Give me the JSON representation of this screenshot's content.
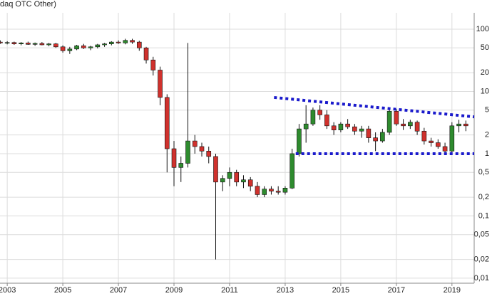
{
  "chart_data": {
    "type": "candlestick",
    "title": "daq OTC Other)",
    "log_scale": true,
    "grid": true,
    "up_color": "#2e8b2e",
    "down_color": "#d0312d",
    "x": [
      2002.75,
      2003.0,
      2003.25,
      2003.5,
      2003.75,
      2004.0,
      2004.25,
      2004.5,
      2004.75,
      2005.0,
      2005.25,
      2005.5,
      2005.75,
      2006.0,
      2006.25,
      2006.5,
      2006.75,
      2007.0,
      2007.25,
      2007.5,
      2007.75,
      2008.0,
      2008.25,
      2008.5,
      2008.75,
      2009.0,
      2009.25,
      2009.5,
      2009.75,
      2010.0,
      2010.25,
      2010.5,
      2010.75,
      2011.0,
      2011.25,
      2011.5,
      2011.75,
      2012.0,
      2012.25,
      2012.5,
      2012.75,
      2013.0,
      2013.25,
      2013.5,
      2013.75,
      2014.0,
      2014.25,
      2014.5,
      2014.75,
      2015.0,
      2015.25,
      2015.5,
      2015.75,
      2016.0,
      2016.25,
      2016.5,
      2016.75,
      2017.0,
      2017.25,
      2017.5,
      2017.75,
      2018.0,
      2018.25,
      2018.5,
      2018.75,
      2019.0,
      2019.25,
      2019.5
    ],
    "open": [
      62,
      60,
      61,
      58,
      60,
      57,
      59,
      56,
      58,
      52,
      45,
      48,
      54,
      50,
      52,
      56,
      58,
      62,
      60,
      66,
      62,
      50,
      32,
      22,
      8,
      1.2,
      0.6,
      0.7,
      1.6,
      1.3,
      1.1,
      0.9,
      0.35,
      0.4,
      0.5,
      0.35,
      0.38,
      0.3,
      0.22,
      0.27,
      0.25,
      0.24,
      0.28,
      1.0,
      2.5,
      3.0,
      5.0,
      4.2,
      2.8,
      2.4,
      3.0,
      2.7,
      2.3,
      2.5,
      1.8,
      1.6,
      2.2,
      4.8,
      3.0,
      2.8,
      3.2,
      2.3,
      1.6,
      1.5,
      1.3,
      1.1,
      2.8,
      3.0
    ],
    "high": [
      66,
      64,
      63,
      62,
      63,
      61,
      62,
      60,
      60,
      55,
      52,
      56,
      58,
      54,
      58,
      60,
      64,
      66,
      70,
      70,
      65,
      52,
      36,
      25,
      9,
      1.6,
      0.9,
      60,
      2.0,
      1.5,
      1.3,
      1.0,
      0.45,
      0.6,
      0.55,
      0.45,
      0.42,
      0.35,
      0.3,
      0.3,
      0.3,
      0.3,
      1.2,
      3.0,
      6.0,
      5.5,
      6.0,
      5.0,
      3.2,
      3.2,
      3.6,
      3.0,
      2.8,
      2.8,
      2.2,
      2.5,
      5.5,
      5.2,
      3.6,
      3.5,
      3.4,
      2.6,
      1.8,
      1.7,
      1.5,
      3.2,
      3.5,
      3.4
    ],
    "low": [
      58,
      57,
      56,
      55,
      56,
      54,
      55,
      53,
      50,
      42,
      40,
      46,
      48,
      46,
      49,
      52,
      55,
      58,
      57,
      58,
      45,
      28,
      18,
      6,
      0.5,
      0.3,
      0.35,
      0.6,
      1.0,
      0.9,
      0.7,
      0.02,
      0.25,
      0.3,
      0.3,
      0.28,
      0.25,
      0.2,
      0.2,
      0.22,
      0.22,
      0.22,
      0.27,
      0.9,
      1.5,
      2.8,
      3.5,
      2.5,
      2.0,
      2.2,
      2.5,
      2.0,
      1.8,
      1.5,
      1.1,
      1.5,
      2.0,
      2.8,
      2.4,
      2.5,
      2.0,
      1.4,
      1.3,
      1.2,
      1.0,
      1.0,
      2.2,
      2.3
    ],
    "close": [
      60,
      61,
      58,
      60,
      57,
      59,
      56,
      58,
      52,
      45,
      48,
      54,
      50,
      52,
      56,
      58,
      62,
      60,
      66,
      62,
      50,
      32,
      22,
      8,
      1.2,
      0.6,
      0.7,
      1.6,
      1.3,
      1.1,
      0.9,
      0.35,
      0.4,
      0.5,
      0.35,
      0.38,
      0.3,
      0.22,
      0.27,
      0.25,
      0.24,
      0.28,
      1.0,
      2.5,
      3.0,
      5.0,
      4.2,
      2.8,
      2.4,
      3.0,
      2.7,
      2.3,
      2.5,
      1.8,
      1.6,
      2.2,
      4.8,
      3.0,
      2.8,
      3.2,
      2.3,
      1.6,
      1.5,
      1.3,
      1.1,
      2.8,
      3.0,
      2.8
    ],
    "xlim": [
      2002.74,
      2019.8
    ],
    "xticks": [
      2003,
      2005,
      2007,
      2009,
      2011,
      2013,
      2015,
      2017,
      2019
    ],
    "ylim": [
      0.0083,
      183
    ],
    "yticks": [
      {
        "value": 0.01,
        "label": "0,01"
      },
      {
        "value": 0.02,
        "label": "0,02"
      },
      {
        "value": 0.05,
        "label": "0,05"
      },
      {
        "value": 0.1,
        "label": "0,1"
      },
      {
        "value": 0.2,
        "label": "0,2"
      },
      {
        "value": 0.5,
        "label": "0,5"
      },
      1,
      2,
      5,
      10,
      20,
      50,
      100
    ],
    "trend_lines": [
      {
        "color": "#1a1acc",
        "x": [
          2012.6,
          2019.8
        ],
        "y": [
          8.0,
          3.9
        ]
      },
      {
        "color": "#1a1acc",
        "x": [
          2013.38,
          2019.8
        ],
        "y": [
          1,
          1
        ]
      }
    ]
  }
}
